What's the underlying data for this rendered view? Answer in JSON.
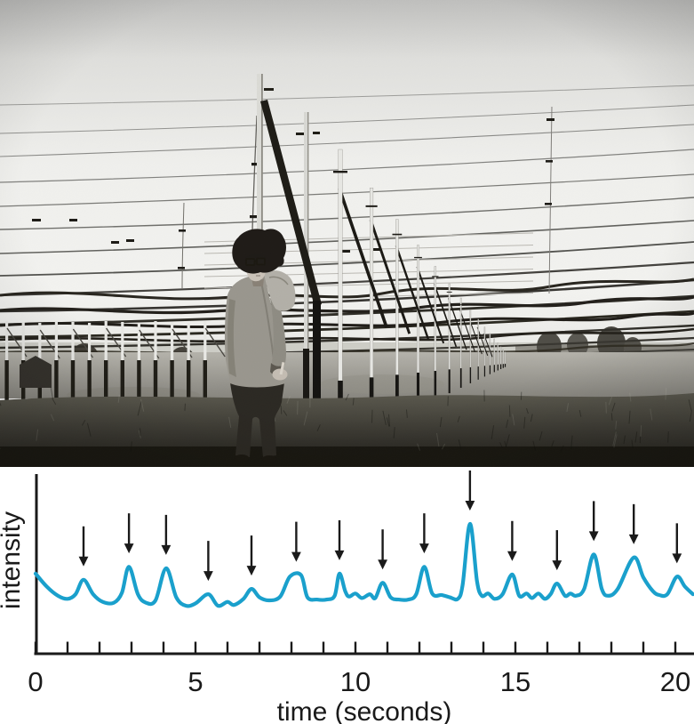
{
  "photo": {
    "kind": "black-and-white-photograph",
    "subject": "person in glasses and light jacket standing in a field beside receding rows of tall antenna poles strung with many horizontal wires"
  },
  "chart_data": {
    "type": "line",
    "title": "",
    "xlabel": "time (seconds)",
    "ylabel": "intensity",
    "xlim": [
      0,
      20.6
    ],
    "x_major_ticks": [
      0,
      5,
      10,
      15,
      20
    ],
    "x_tick_labels": [
      "0",
      "5",
      "10",
      "15",
      "20"
    ],
    "x_minor_tick_step": 1,
    "grid": false,
    "legend": "none",
    "line_color": "#1aa0cc",
    "axis_color": "#1a1a1a",
    "intensity_units": "arbitrary (0 = baseline, 100 = tallest peak)",
    "series": [
      {
        "name": "intensity trace",
        "points": [
          [
            0.0,
            35
          ],
          [
            0.35,
            18
          ],
          [
            0.7,
            6
          ],
          [
            1.0,
            2
          ],
          [
            1.25,
            8
          ],
          [
            1.5,
            27
          ],
          [
            1.8,
            8
          ],
          [
            2.1,
            -2
          ],
          [
            2.45,
            -3
          ],
          [
            2.7,
            10
          ],
          [
            2.92,
            44
          ],
          [
            3.2,
            8
          ],
          [
            3.45,
            -3
          ],
          [
            3.75,
            0
          ],
          [
            4.08,
            42
          ],
          [
            4.4,
            4
          ],
          [
            4.7,
            -7
          ],
          [
            5.0,
            -4
          ],
          [
            5.4,
            8
          ],
          [
            5.7,
            -7
          ],
          [
            6.0,
            -2
          ],
          [
            6.2,
            -6
          ],
          [
            6.5,
            2
          ],
          [
            6.75,
            15
          ],
          [
            7.0,
            4
          ],
          [
            7.3,
            0
          ],
          [
            7.65,
            5
          ],
          [
            7.95,
            31
          ],
          [
            8.3,
            33
          ],
          [
            8.5,
            4
          ],
          [
            8.8,
            1
          ],
          [
            9.1,
            1
          ],
          [
            9.35,
            6
          ],
          [
            9.5,
            35
          ],
          [
            9.68,
            12
          ],
          [
            9.8,
            5
          ],
          [
            10.0,
            9
          ],
          [
            10.2,
            3
          ],
          [
            10.45,
            8
          ],
          [
            10.62,
            3
          ],
          [
            10.85,
            23
          ],
          [
            11.1,
            4
          ],
          [
            11.35,
            1
          ],
          [
            11.65,
            1
          ],
          [
            11.9,
            8
          ],
          [
            12.15,
            44
          ],
          [
            12.4,
            9
          ],
          [
            12.7,
            7
          ],
          [
            12.95,
            4
          ],
          [
            13.2,
            2
          ],
          [
            13.35,
            20
          ],
          [
            13.58,
            100
          ],
          [
            13.8,
            25
          ],
          [
            13.95,
            6
          ],
          [
            14.15,
            9
          ],
          [
            14.35,
            2
          ],
          [
            14.6,
            8
          ],
          [
            14.9,
            34
          ],
          [
            15.12,
            6
          ],
          [
            15.35,
            9
          ],
          [
            15.52,
            3
          ],
          [
            15.72,
            9
          ],
          [
            15.92,
            2
          ],
          [
            16.1,
            8
          ],
          [
            16.3,
            22
          ],
          [
            16.55,
            6
          ],
          [
            16.72,
            9
          ],
          [
            16.9,
            6
          ],
          [
            17.15,
            15
          ],
          [
            17.45,
            60
          ],
          [
            17.7,
            15
          ],
          [
            17.9,
            6
          ],
          [
            18.2,
            15
          ],
          [
            18.7,
            56
          ],
          [
            19.0,
            30
          ],
          [
            19.3,
            12
          ],
          [
            19.5,
            7
          ],
          [
            19.75,
            8
          ],
          [
            20.05,
            31
          ],
          [
            20.3,
            18
          ],
          [
            20.55,
            8
          ]
        ]
      }
    ],
    "peak_arrows": {
      "color": "#1a1a1a",
      "count": 15,
      "marks": [
        {
          "t": 1.5,
          "v": 27
        },
        {
          "t": 2.92,
          "v": 44
        },
        {
          "t": 4.08,
          "v": 42
        },
        {
          "t": 5.4,
          "v": 8
        },
        {
          "t": 6.75,
          "v": 15
        },
        {
          "t": 8.15,
          "v": 33
        },
        {
          "t": 9.5,
          "v": 35
        },
        {
          "t": 10.85,
          "v": 23
        },
        {
          "t": 12.15,
          "v": 44
        },
        {
          "t": 13.58,
          "v": 100
        },
        {
          "t": 14.9,
          "v": 34
        },
        {
          "t": 16.3,
          "v": 22
        },
        {
          "t": 17.45,
          "v": 60
        },
        {
          "t": 18.7,
          "v": 56
        },
        {
          "t": 20.05,
          "v": 31
        }
      ]
    }
  }
}
